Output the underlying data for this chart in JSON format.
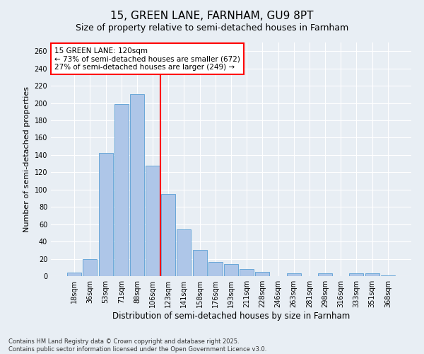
{
  "title1": "15, GREEN LANE, FARNHAM, GU9 8PT",
  "title2": "Size of property relative to semi-detached houses in Farnham",
  "xlabel": "Distribution of semi-detached houses by size in Farnham",
  "ylabel": "Number of semi-detached properties",
  "footnote": "Contains HM Land Registry data © Crown copyright and database right 2025.\nContains public sector information licensed under the Open Government Licence v3.0.",
  "bin_labels": [
    "18sqm",
    "36sqm",
    "53sqm",
    "71sqm",
    "88sqm",
    "106sqm",
    "123sqm",
    "141sqm",
    "158sqm",
    "176sqm",
    "193sqm",
    "211sqm",
    "228sqm",
    "246sqm",
    "263sqm",
    "281sqm",
    "298sqm",
    "316sqm",
    "333sqm",
    "351sqm",
    "368sqm"
  ],
  "bar_values": [
    4,
    20,
    142,
    199,
    210,
    128,
    95,
    54,
    30,
    16,
    14,
    8,
    5,
    0,
    3,
    0,
    3,
    0,
    3,
    3,
    1
  ],
  "bar_color": "#aec6e8",
  "bar_edge_color": "#5a9fd4",
  "vline_color": "red",
  "vline_x_index": 5.5,
  "annotation_text": "15 GREEN LANE: 120sqm\n← 73% of semi-detached houses are smaller (672)\n27% of semi-detached houses are larger (249) →",
  "annotation_box_color": "white",
  "annotation_box_edge_color": "red",
  "ylim": [
    0,
    270
  ],
  "yticks": [
    0,
    20,
    40,
    60,
    80,
    100,
    120,
    140,
    160,
    180,
    200,
    220,
    240,
    260
  ],
  "background_color": "#e8eef4",
  "grid_color": "white",
  "title1_fontsize": 11,
  "title2_fontsize": 9,
  "xlabel_fontsize": 8.5,
  "ylabel_fontsize": 8,
  "tick_fontsize": 7,
  "annot_fontsize": 7.5,
  "footnote_fontsize": 6
}
